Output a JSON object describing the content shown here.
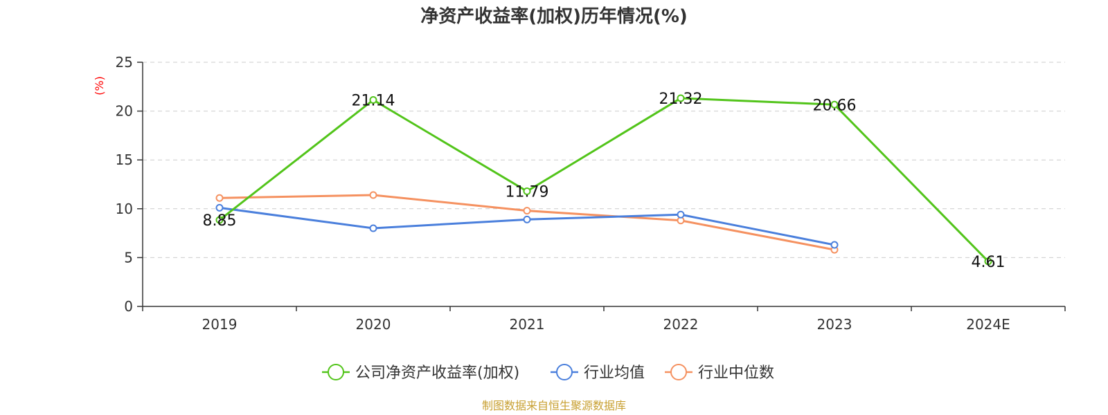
{
  "chart_data": {
    "type": "line",
    "title": "净资产收益率(加权)历年情况(%)",
    "ylabel": "(%)",
    "xlabel": "",
    "categories": [
      "2019",
      "2020",
      "2021",
      "2022",
      "2023",
      "2024E"
    ],
    "ylim": [
      0,
      25
    ],
    "yticks": [
      0,
      5,
      10,
      15,
      20,
      25
    ],
    "grid": "horizontal dashed",
    "legend_position": "bottom",
    "series": [
      {
        "name": "公司净资产收益率(加权)",
        "color": "#52c41a",
        "values": [
          8.85,
          21.14,
          11.79,
          21.32,
          20.66,
          4.61
        ],
        "labels": [
          "8.85",
          "21.14",
          "11.79",
          "21.32",
          "20.66",
          "4.61"
        ]
      },
      {
        "name": "行业均值",
        "color": "#4a7fdc",
        "values": [
          10.1,
          8.0,
          8.9,
          9.4,
          6.3,
          null
        ]
      },
      {
        "name": "行业中位数",
        "color": "#f59160",
        "values": [
          11.1,
          11.4,
          9.8,
          8.8,
          5.8,
          null
        ]
      }
    ],
    "source": "制图数据来自恒生聚源数据库"
  }
}
